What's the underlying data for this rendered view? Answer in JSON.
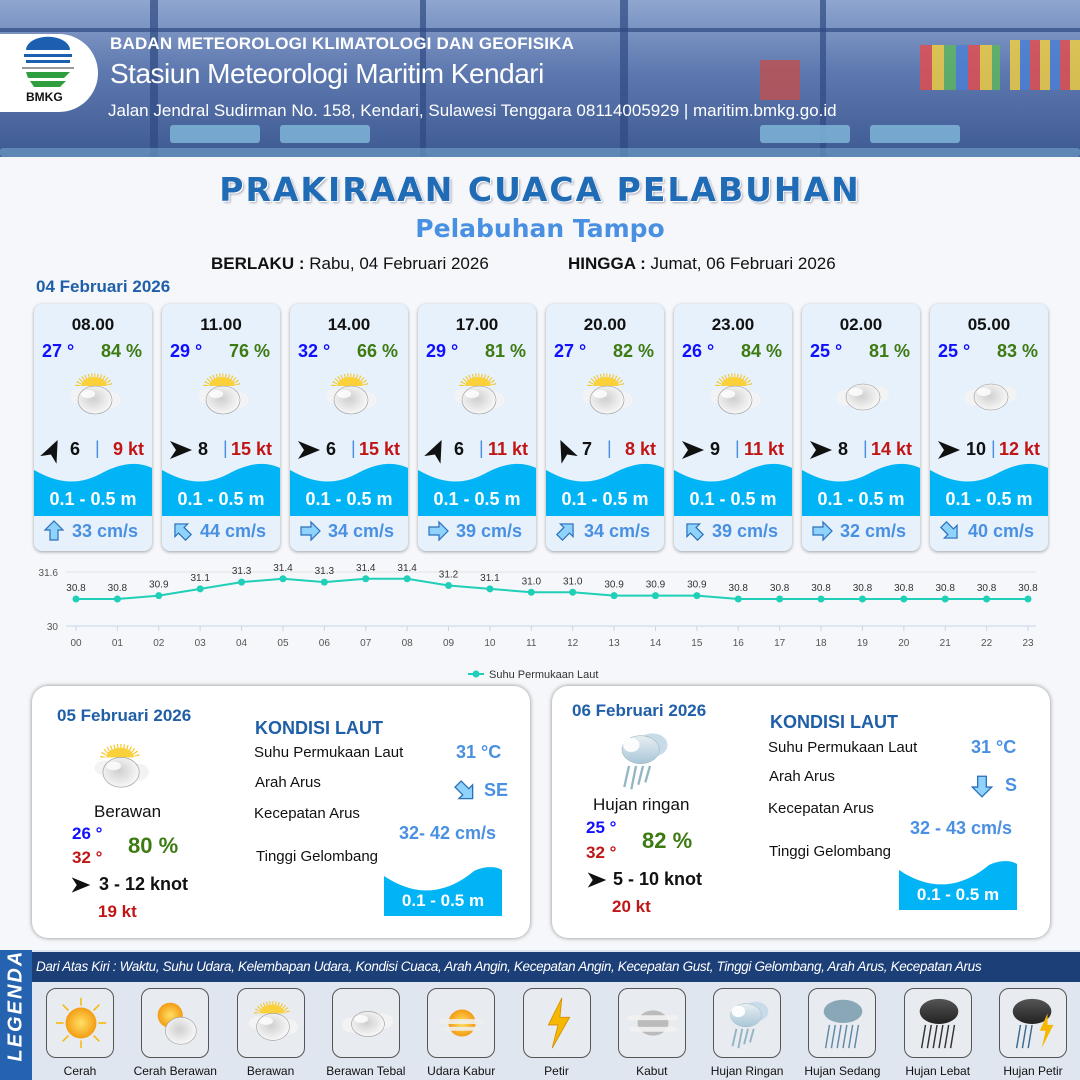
{
  "header": {
    "agency": "BADAN METEOROLOGI KLIMATOLOGI DAN GEOFISIKA",
    "station": "Stasiun Meteorologi Maritim Kendari",
    "address": "Jalan Jendral Sudirman No. 158, Kendari, Sulawesi Tenggara  08114005929 | maritim.bmkg.go.id",
    "logo_text": "BMKG"
  },
  "title": "PRAKIRAAN CUACA PELABUHAN",
  "subtitle": "Pelabuhan Tampo",
  "validity": {
    "from_label": "BERLAKU :",
    "from_value": "Rabu, 04 Februari 2026",
    "to_label": "HINGGA :",
    "to_value": "Jumat, 06 Februari 2026"
  },
  "day1": {
    "date": "04 Februari 2026",
    "forecasts": [
      {
        "time": "08.00",
        "temp": "27 °",
        "hum": "84 %",
        "icon": "berawan",
        "wind_dir_deg": -65,
        "wind": "6",
        "gust": "9 kt",
        "wave": "0.1 - 0.5 m",
        "current_dir_deg": -90,
        "current": "33 cm/s"
      },
      {
        "time": "11.00",
        "temp": "29 °",
        "hum": "76 %",
        "icon": "berawan",
        "wind_dir_deg": 0,
        "wind": "8",
        "gust": "15 kt",
        "wave": "0.1 - 0.5 m",
        "current_dir_deg": -135,
        "current": "44 cm/s"
      },
      {
        "time": "14.00",
        "temp": "32 °",
        "hum": "66 %",
        "icon": "berawan",
        "wind_dir_deg": 0,
        "wind": "6",
        "gust": "15 kt",
        "wave": "0.1 - 0.5 m",
        "current_dir_deg": 0,
        "current": "34 cm/s"
      },
      {
        "time": "17.00",
        "temp": "29 °",
        "hum": "81 %",
        "icon": "berawan",
        "wind_dir_deg": -65,
        "wind": "6",
        "gust": "11 kt",
        "wave": "0.1 - 0.5 m",
        "current_dir_deg": 0,
        "current": "39 cm/s"
      },
      {
        "time": "20.00",
        "temp": "27 °",
        "hum": "82 %",
        "icon": "berawan",
        "wind_dir_deg": -115,
        "wind": "7",
        "gust": "8 kt",
        "wave": "0.1 - 0.5 m",
        "current_dir_deg": -45,
        "current": "34 cm/s"
      },
      {
        "time": "23.00",
        "temp": "26 °",
        "hum": "84 %",
        "icon": "berawan",
        "wind_dir_deg": 0,
        "wind": "9",
        "gust": "11 kt",
        "wave": "0.1 - 0.5 m",
        "current_dir_deg": -135,
        "current": "39 cm/s"
      },
      {
        "time": "02.00",
        "temp": "25 °",
        "hum": "81 %",
        "icon": "berawan-tebal",
        "wind_dir_deg": 0,
        "wind": "8",
        "gust": "14 kt",
        "wave": "0.1 - 0.5 m",
        "current_dir_deg": 0,
        "current": "32 cm/s"
      },
      {
        "time": "05.00",
        "temp": "25 °",
        "hum": "83 %",
        "icon": "berawan-tebal",
        "wind_dir_deg": 0,
        "wind": "10",
        "gust": "12 kt",
        "wave": "0.1 - 0.5 m",
        "current_dir_deg": 45,
        "current": "40 cm/s"
      }
    ]
  },
  "chart_data": {
    "type": "line",
    "x": [
      "00",
      "01",
      "02",
      "03",
      "04",
      "05",
      "06",
      "07",
      "08",
      "09",
      "10",
      "11",
      "12",
      "13",
      "14",
      "15",
      "16",
      "17",
      "18",
      "19",
      "20",
      "21",
      "22",
      "23"
    ],
    "series": [
      {
        "name": "Suhu Permukaan Laut",
        "values": [
          30.8,
          30.8,
          30.9,
          31.1,
          31.3,
          31.4,
          31.3,
          31.4,
          31.4,
          31.2,
          31.1,
          31.0,
          31.0,
          30.9,
          30.9,
          30.9,
          30.8,
          30.8,
          30.8,
          30.8,
          30.8,
          30.8,
          30.8,
          30.8
        ]
      }
    ],
    "y_ticks": [
      "31.6",
      "30"
    ],
    "ylim": [
      30,
      31.6
    ],
    "legend_position": "bottom",
    "color": "#1fcfb8",
    "grid": true
  },
  "day2": {
    "date": "05 Februari 2026",
    "condition": "Berawan",
    "icon": "berawan",
    "tmin": "26 °",
    "tmax": "32 °",
    "hum": "80 %",
    "wind": "3  - 12 knot",
    "gust": "19 kt",
    "sea_title": "KONDISI LAUT",
    "sst_label": "Suhu Permukaan Laut",
    "sst": "31 °C",
    "cur_dir_label": "Arah Arus",
    "cur_dir": "SE",
    "cur_spd_label": "Kecepatan Arus",
    "cur_spd": "32- 42 cm/s",
    "wave_label": "Tinggi Gelombang",
    "wave": "0.1 - 0.5 m"
  },
  "day3": {
    "date": "06 Februari 2026",
    "condition": "Hujan ringan",
    "icon": "hujan-ringan",
    "tmin": "25 °",
    "tmax": "32 °",
    "hum": "82 %",
    "wind": "5  - 10 knot",
    "gust": "20 kt",
    "sea_title": "KONDISI LAUT",
    "sst_label": "Suhu Permukaan Laut",
    "sst": "31 °C",
    "cur_dir_label": "Arah Arus",
    "cur_dir": "S",
    "cur_spd_label": "Kecepatan Arus",
    "cur_spd": "32 - 43 cm/s",
    "wave_label": "Tinggi Gelombang",
    "wave": "0.1 - 0.5 m"
  },
  "legend": {
    "title": "LEGENDA",
    "description": "Dari Atas Kiri : Waktu, Suhu Udara, Kelembapan Udara, Kondisi Cuaca, Arah Angin, Kecepatan Angin, Kecepatan Gust, Tinggi Gelombang, Arah Arus, Kecepatan Arus",
    "items": [
      {
        "label": "Cerah",
        "icon": "cerah"
      },
      {
        "label": "Cerah Berawan",
        "icon": "cerah-berawan"
      },
      {
        "label": "Berawan",
        "icon": "berawan"
      },
      {
        "label": "Berawan Tebal",
        "icon": "berawan-tebal"
      },
      {
        "label": "Udara Kabur",
        "icon": "udara-kabur"
      },
      {
        "label": "Petir",
        "icon": "petir"
      },
      {
        "label": "Kabut",
        "icon": "kabut"
      },
      {
        "label": "Hujan Ringan",
        "icon": "hujan-ringan"
      },
      {
        "label": "Hujan Sedang",
        "icon": "hujan-sedang"
      },
      {
        "label": "Hujan Lebat",
        "icon": "hujan-lebat"
      },
      {
        "label": "Hujan Petir",
        "icon": "hujan-petir"
      }
    ]
  },
  "colors": {
    "title": "#1f6bb5",
    "wave": "#00b4f5",
    "temp": "#1010ff",
    "humidity": "#3d7a12",
    "gust": "#c01616",
    "current": "#4a90e2"
  }
}
